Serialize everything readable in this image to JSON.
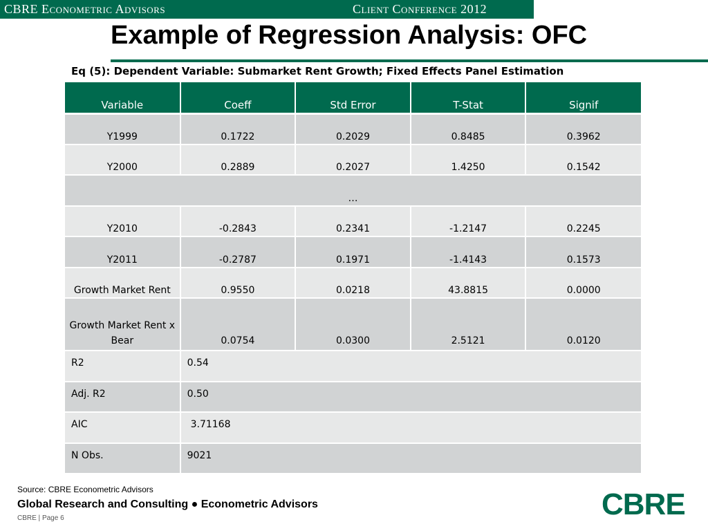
{
  "header": {
    "left_label": "CBRE Econometric Advisors",
    "right_label": "Client Conference 2012",
    "accent_color": "#006A4E"
  },
  "title": "Example of Regression Analysis: OFC",
  "subtitle": "Eq (5): Dependent Variable: Submarket Rent Growth; Fixed Effects Panel Estimation",
  "table": {
    "columns": [
      "Variable",
      "Coeff",
      "Std Error",
      "T-Stat",
      "Signif"
    ],
    "rows": [
      [
        "Y1999",
        "0.1722",
        "0.2029",
        "0.8485",
        "0.3962"
      ],
      [
        "Y2000",
        "0.2889",
        "0.2027",
        "1.4250",
        "0.1542"
      ],
      [
        "Y2010",
        "-0.2843",
        "0.2341",
        "-1.2147",
        "0.2245"
      ],
      [
        "Y2011",
        "-0.2787",
        "0.1971",
        "-1.4143",
        "0.1573"
      ],
      [
        "Growth Market Rent",
        "0.9550",
        "0.0218",
        "43.8815",
        "0.0000"
      ],
      [
        "Growth Market Rent x Bear",
        "0.0754",
        "0.0300",
        "2.5121",
        "0.0120"
      ]
    ],
    "ellipsis": "…",
    "stats": [
      {
        "label": "R2",
        "value": "0.54"
      },
      {
        "label": "Adj. R2",
        "value": "0.50"
      },
      {
        "label": "AIC",
        "value": "3.71168"
      },
      {
        "label": "N Obs.",
        "value": "9021"
      }
    ]
  },
  "footer": {
    "source": "Source: CBRE Econometric Advisors",
    "main": "Global Research and Consulting ● Econometric Advisors",
    "page": "CBRE  |  Page 6",
    "logo": "CBRE"
  }
}
